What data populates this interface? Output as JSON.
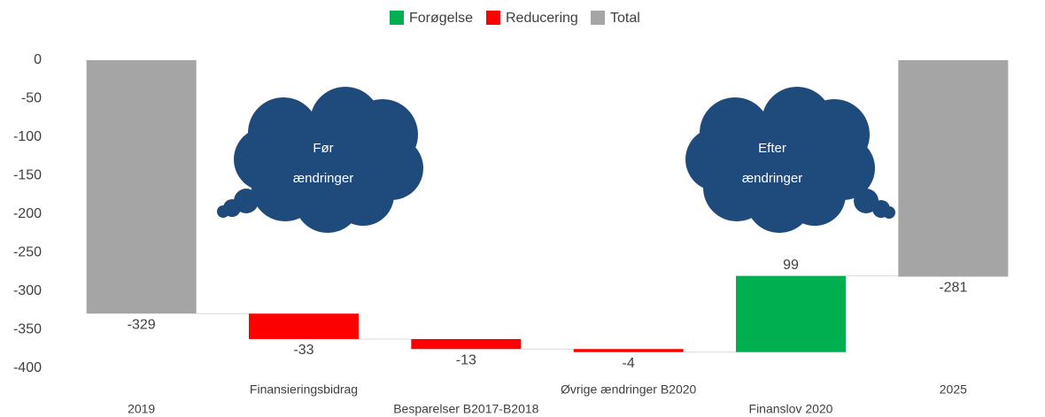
{
  "chart_data": {
    "type": "waterfall",
    "categories": [
      "2019",
      "Finansieringsbidrag",
      "Besparelser B2017-B2018",
      "Øvrige ændringer B2020",
      "Finanslov 2020",
      "2025"
    ],
    "series": [
      {
        "name": "Forøgelse",
        "color": "#00b050",
        "values": [
          null,
          null,
          null,
          null,
          99,
          null
        ]
      },
      {
        "name": "Reducering",
        "color": "#ff0000",
        "values": [
          null,
          -33,
          -13,
          -4,
          null,
          null
        ]
      },
      {
        "name": "Total",
        "color": "#a5a5a5",
        "values": [
          -329,
          null,
          null,
          null,
          null,
          -281
        ]
      }
    ],
    "ylim": [
      -400,
      0
    ],
    "yticks": [
      0,
      -50,
      -100,
      -150,
      -200,
      -250,
      -300,
      -350,
      -400
    ],
    "legend": "top",
    "annotations": [
      [
        "Før",
        "ændringer"
      ],
      [
        "Efter",
        "ændringer"
      ]
    ]
  }
}
